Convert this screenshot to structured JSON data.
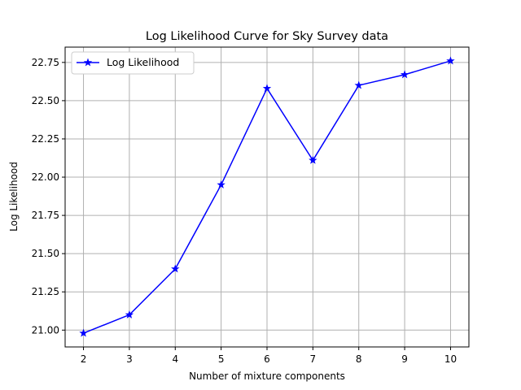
{
  "chart_data": {
    "type": "line",
    "title": "Log Likelihood Curve for Sky Survey data",
    "xlabel": "Number of mixture components",
    "ylabel": "Log Likelihood",
    "x": [
      2,
      3,
      4,
      5,
      6,
      7,
      8,
      9,
      10
    ],
    "series": [
      {
        "name": "Log Likelihood",
        "values": [
          20.98,
          21.1,
          21.4,
          21.95,
          22.58,
          22.11,
          22.6,
          22.67,
          22.76
        ],
        "color": "#0000ff",
        "marker": "star"
      }
    ],
    "xticks": [
      "2",
      "3",
      "4",
      "5",
      "6",
      "7",
      "8",
      "9",
      "10"
    ],
    "yticks": [
      "21.00",
      "21.25",
      "21.50",
      "21.75",
      "22.00",
      "22.25",
      "22.50",
      "22.75"
    ],
    "xlim": [
      1.6,
      10.4
    ],
    "ylim": [
      20.89,
      22.85
    ],
    "grid": true,
    "legend_position": "upper-left"
  }
}
